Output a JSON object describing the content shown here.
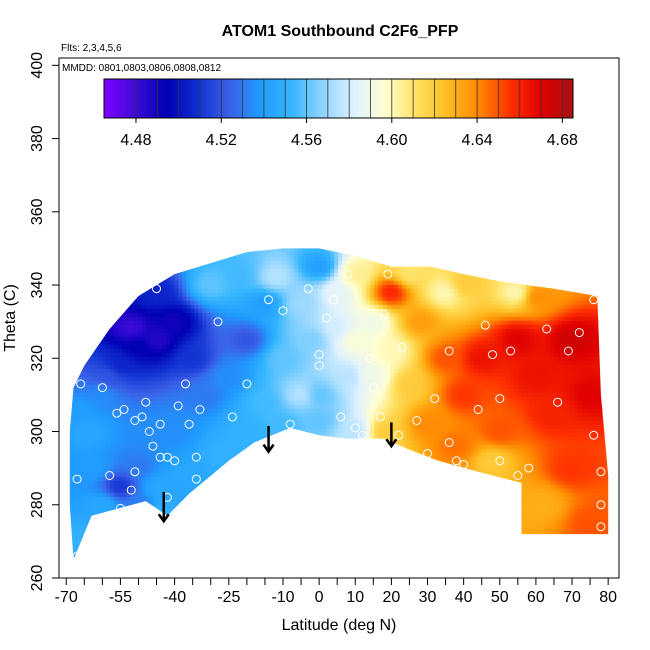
{
  "chart_data": {
    "type": "heatmap",
    "title": "ATOM1 Southbound C2F6_PFP",
    "notes": {
      "flights": "Flts: 2,3,4,5,6",
      "dates": "MMDD: 0801,0803,0806,0808,0812"
    },
    "xlabel": "Latitude (deg N)",
    "ylabel": "Theta (C)",
    "xlim": [
      -72,
      83
    ],
    "ylim": [
      260,
      402
    ],
    "xticks": [
      -70,
      -55,
      -40,
      -25,
      -10,
      0,
      10,
      20,
      30,
      40,
      50,
      60,
      70,
      80
    ],
    "xtick_labels": [
      "-70",
      "-55",
      "-40",
      "-25",
      "-10",
      "0",
      "10",
      "20",
      "30",
      "40",
      "50",
      "60",
      "70",
      "80"
    ],
    "x_minor_ticks": [
      -65,
      -60,
      -50,
      -45,
      -35,
      -30,
      -20,
      -15,
      -5,
      5,
      15,
      25,
      35,
      45,
      55,
      65,
      75
    ],
    "yticks": [
      260,
      280,
      300,
      320,
      340,
      360,
      380,
      400
    ],
    "ytick_labels": [
      "260",
      "280",
      "300",
      "320",
      "340",
      "360",
      "380",
      "400"
    ],
    "colorbar": {
      "min": 4.465,
      "max": 4.685,
      "ticks": [
        4.48,
        4.52,
        4.56,
        4.6,
        4.64,
        4.68
      ],
      "tick_labels": [
        "4.48",
        "4.52",
        "4.56",
        "4.60",
        "4.64",
        "4.68"
      ],
      "colors": [
        "#7f00ff",
        "#3d0bd9",
        "#0000b3",
        "#1030d0",
        "#3a60e8",
        "#1f9bff",
        "#36b6ff",
        "#8fd4ff",
        "#e0f2ff",
        "#ffffd0",
        "#ffe060",
        "#ffbb20",
        "#ff8800",
        "#ff3000",
        "#e00000",
        "#a81010"
      ]
    },
    "field": {
      "boundary": [
        [
          -68,
          265
        ],
        [
          -63,
          277
        ],
        [
          -48,
          281
        ],
        [
          -42,
          277
        ],
        [
          -36,
          283
        ],
        [
          -25,
          292
        ],
        [
          -18,
          297
        ],
        [
          -8,
          301
        ],
        [
          0,
          299
        ],
        [
          8,
          298
        ],
        [
          18,
          298
        ],
        [
          25,
          295
        ],
        [
          33,
          292
        ],
        [
          44,
          289
        ],
        [
          56,
          286
        ],
        [
          56,
          272
        ],
        [
          80,
          272
        ],
        [
          80,
          288
        ],
        [
          78,
          310
        ],
        [
          77,
          337
        ],
        [
          65,
          339
        ],
        [
          50,
          341
        ],
        [
          40,
          343
        ],
        [
          31,
          345
        ],
        [
          20,
          345
        ],
        [
          10,
          348
        ],
        [
          0,
          350
        ],
        [
          -10,
          350
        ],
        [
          -20,
          349
        ],
        [
          -30,
          346
        ],
        [
          -40,
          343
        ],
        [
          -50,
          337
        ],
        [
          -58,
          328
        ],
        [
          -65,
          318
        ],
        [
          -68,
          312
        ],
        [
          -69,
          300
        ],
        [
          -69,
          280
        ]
      ],
      "nodes": [
        [
          -66,
          270,
          4.55
        ],
        [
          -62,
          290,
          4.54
        ],
        [
          -55,
          285,
          4.51
        ],
        [
          -50,
          290,
          4.53
        ],
        [
          -45,
          285,
          4.545
        ],
        [
          -37,
          288,
          4.545
        ],
        [
          -27,
          294,
          4.55
        ],
        [
          -20,
          300,
          4.55
        ],
        [
          -10,
          302,
          4.555
        ],
        [
          0,
          303,
          4.56
        ],
        [
          10,
          300,
          4.575
        ],
        [
          18,
          300,
          4.62
        ],
        [
          -66,
          305,
          4.54
        ],
        [
          -60,
          310,
          4.535
        ],
        [
          -55,
          318,
          4.505
        ],
        [
          -50,
          323,
          4.495
        ],
        [
          -45,
          325,
          4.485
        ],
        [
          -40,
          330,
          4.49
        ],
        [
          -35,
          320,
          4.51
        ],
        [
          -32,
          310,
          4.53
        ],
        [
          -25,
          315,
          4.535
        ],
        [
          -20,
          325,
          4.52
        ],
        [
          -15,
          335,
          4.54
        ],
        [
          -10,
          320,
          4.56
        ],
        [
          -5,
          310,
          4.575
        ],
        [
          -12,
          342,
          4.575
        ],
        [
          -22,
          343,
          4.555
        ],
        [
          -5,
          335,
          4.57
        ],
        [
          0,
          345,
          4.54
        ],
        [
          5,
          338,
          4.585
        ],
        [
          10,
          325,
          4.595
        ],
        [
          15,
          315,
          4.59
        ],
        [
          20,
          322,
          4.6
        ],
        [
          25,
          313,
          4.62
        ],
        [
          30,
          302,
          4.64
        ],
        [
          28,
          330,
          4.635
        ],
        [
          20,
          338,
          4.66
        ],
        [
          35,
          320,
          4.65
        ],
        [
          40,
          310,
          4.655
        ],
        [
          45,
          320,
          4.665
        ],
        [
          50,
          300,
          4.65
        ],
        [
          55,
          325,
          4.67
        ],
        [
          60,
          315,
          4.665
        ],
        [
          65,
          305,
          4.66
        ],
        [
          70,
          325,
          4.675
        ],
        [
          75,
          310,
          4.67
        ],
        [
          70,
          290,
          4.655
        ],
        [
          62,
          280,
          4.63
        ],
        [
          75,
          275,
          4.65
        ],
        [
          48,
          292,
          4.62
        ],
        [
          38,
          296,
          4.645
        ],
        [
          10,
          343,
          4.605
        ],
        [
          25,
          343,
          4.61
        ],
        [
          40,
          340,
          4.62
        ],
        [
          60,
          337,
          4.64
        ],
        [
          -64,
          300,
          4.545
        ],
        [
          -48,
          300,
          4.535
        ],
        [
          -40,
          300,
          4.535
        ],
        [
          -30,
          340,
          4.56
        ],
        [
          35,
          338,
          4.6
        ],
        [
          55,
          338,
          4.6
        ],
        [
          -58,
          315,
          4.52
        ],
        [
          -52,
          328,
          4.48
        ],
        [
          -45,
          338,
          4.505
        ],
        [
          -2,
          325,
          4.565
        ],
        [
          8,
          315,
          4.575
        ],
        [
          0,
          310,
          4.56
        ],
        [
          -15,
          308,
          4.555
        ],
        [
          5,
          328,
          4.58
        ],
        [
          15,
          330,
          4.59
        ],
        [
          -60,
          280,
          4.545
        ],
        [
          -44,
          278,
          4.55
        ],
        [
          -50,
          280,
          4.53
        ]
      ]
    },
    "sample_points": [
      [
        -67,
        266
      ],
      [
        -67,
        287
      ],
      [
        -66,
        313
      ],
      [
        -58,
        288
      ],
      [
        -57,
        277
      ],
      [
        -55,
        279
      ],
      [
        -52,
        284
      ],
      [
        -51,
        289
      ],
      [
        -50,
        279
      ],
      [
        -56,
        305
      ],
      [
        -54,
        306
      ],
      [
        -51,
        303
      ],
      [
        -48,
        308
      ],
      [
        -47,
        300
      ],
      [
        -46,
        296
      ],
      [
        -44,
        293
      ],
      [
        -42,
        293
      ],
      [
        -40,
        292
      ],
      [
        -36,
        302
      ],
      [
        -34,
        287
      ],
      [
        -34,
        293
      ],
      [
        -33,
        306
      ],
      [
        -37,
        313
      ],
      [
        -45,
        339
      ],
      [
        -28,
        330
      ],
      [
        -24,
        304
      ],
      [
        -20,
        313
      ],
      [
        -14,
        336
      ],
      [
        -8,
        302
      ],
      [
        -10,
        333
      ],
      [
        -3,
        339
      ],
      [
        0,
        321
      ],
      [
        0,
        318
      ],
      [
        2,
        331
      ],
      [
        4,
        336
      ],
      [
        8,
        343
      ],
      [
        10,
        301
      ],
      [
        12,
        299
      ],
      [
        15,
        312
      ],
      [
        17,
        304
      ],
      [
        18,
        332
      ],
      [
        22,
        299
      ],
      [
        27,
        303
      ],
      [
        32,
        309
      ],
      [
        36,
        297
      ],
      [
        38,
        292
      ],
      [
        40,
        291
      ],
      [
        44,
        306
      ],
      [
        46,
        329
      ],
      [
        48,
        321
      ],
      [
        50,
        309
      ],
      [
        50,
        292
      ],
      [
        53,
        322
      ],
      [
        55,
        288
      ],
      [
        58,
        290
      ],
      [
        63,
        328
      ],
      [
        66,
        308
      ],
      [
        69,
        322
      ],
      [
        72,
        327
      ],
      [
        76,
        299
      ],
      [
        78,
        289
      ],
      [
        78,
        280
      ],
      [
        78,
        274
      ],
      [
        76,
        336
      ],
      [
        -42,
        282
      ],
      [
        -49,
        304
      ],
      [
        -44,
        302
      ],
      [
        -39,
        307
      ],
      [
        19,
        343
      ],
      [
        23,
        323
      ],
      [
        30,
        294
      ],
      [
        36,
        322
      ],
      [
        14,
        320
      ],
      [
        6,
        304
      ],
      [
        -60,
        312
      ]
    ],
    "arrows": [
      {
        "lat": -43,
        "theta_top": 283.5,
        "theta_bottom": 275.5
      },
      {
        "lat": -14,
        "theta_top": 301.5,
        "theta_bottom": 294.5
      },
      {
        "lat": 20,
        "theta_top": 302.5,
        "theta_bottom": 296
      }
    ]
  }
}
